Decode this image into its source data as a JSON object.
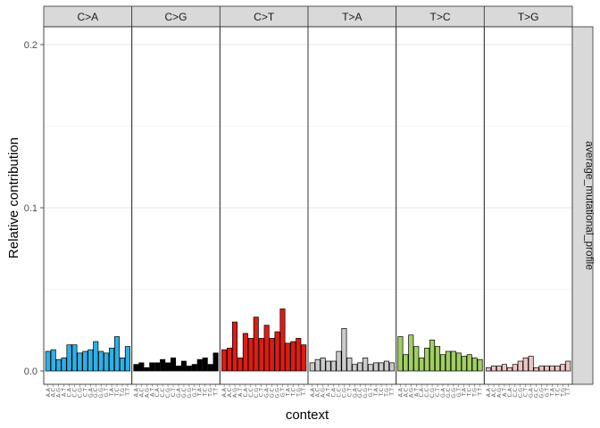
{
  "chart_data": {
    "type": "bar",
    "ylabel": "Relative contribution",
    "xlabel": "context",
    "ylim": [
      0,
      0.21
    ],
    "yticks": [
      0.0,
      0.1,
      0.2
    ],
    "ytick_labels": [
      "0.0",
      "0.1",
      "0.2"
    ],
    "grid": "horizontal major and minor lines",
    "row_strip": "average_mutational_profile",
    "contexts": [
      "A.A",
      "A.C",
      "A.G",
      "A.T",
      "C.A",
      "C.C",
      "C.G",
      "C.T",
      "G.A",
      "G.C",
      "G.G",
      "G.T",
      "T.A",
      "T.C",
      "T.G",
      "T.T"
    ],
    "panels": [
      {
        "label": "C>A",
        "color": "#2EB0E6",
        "values": [
          0.012,
          0.013,
          0.007,
          0.008,
          0.016,
          0.016,
          0.011,
          0.012,
          0.013,
          0.018,
          0.012,
          0.011,
          0.014,
          0.021,
          0.008,
          0.015
        ]
      },
      {
        "label": "C>G",
        "color": "#000000",
        "values": [
          0.004,
          0.005,
          0.002,
          0.005,
          0.005,
          0.007,
          0.005,
          0.008,
          0.003,
          0.006,
          0.003,
          0.004,
          0.007,
          0.008,
          0.004,
          0.011
        ]
      },
      {
        "label": "C>T",
        "color": "#DE1C14",
        "values": [
          0.013,
          0.014,
          0.03,
          0.008,
          0.023,
          0.02,
          0.033,
          0.02,
          0.028,
          0.02,
          0.024,
          0.038,
          0.017,
          0.018,
          0.02,
          0.016
        ]
      },
      {
        "label": "T>A",
        "color": "#CBCBCB",
        "values": [
          0.005,
          0.007,
          0.008,
          0.006,
          0.006,
          0.012,
          0.026,
          0.008,
          0.004,
          0.005,
          0.008,
          0.004,
          0.005,
          0.005,
          0.006,
          0.005
        ]
      },
      {
        "label": "T>C",
        "color": "#A1CE63",
        "values": [
          0.021,
          0.01,
          0.022,
          0.015,
          0.008,
          0.014,
          0.019,
          0.015,
          0.01,
          0.012,
          0.012,
          0.011,
          0.009,
          0.01,
          0.008,
          0.007
        ]
      },
      {
        "label": "T>G",
        "color": "#EBC6C4",
        "values": [
          0.002,
          0.003,
          0.003,
          0.004,
          0.002,
          0.004,
          0.006,
          0.008,
          0.009,
          0.002,
          0.003,
          0.003,
          0.003,
          0.003,
          0.004,
          0.006
        ]
      }
    ]
  }
}
